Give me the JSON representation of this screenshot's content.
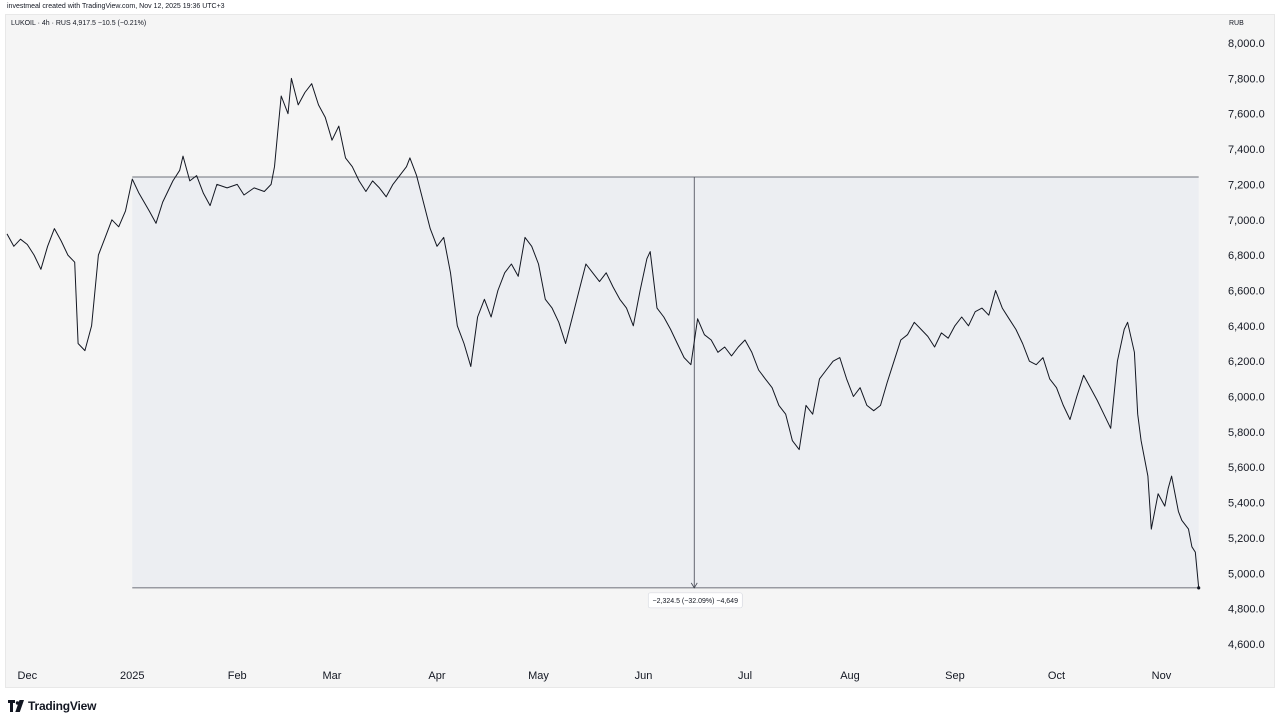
{
  "header": {
    "credit": "investmeal created with TradingView.com, Nov 12, 2025 19:36 UTC+3"
  },
  "symbol": {
    "legend": "LUKOIL · 4h · RUS  4,917.5  −10.5 (−0.21%)"
  },
  "currency": "RUB",
  "footer": {
    "brand": "TradingView"
  },
  "colors": {
    "background": "#f5f5f5",
    "line": "#131722",
    "range_fill": "#eceef2",
    "range_border": "#434651"
  },
  "chart_data": {
    "type": "line",
    "title": "",
    "xlabel": "",
    "ylabel": "",
    "ylim": [
      4500,
      8100
    ],
    "y_ticks": [
      4600,
      4800,
      5000,
      5200,
      5400,
      5600,
      5800,
      6000,
      6200,
      6400,
      6600,
      6800,
      7000,
      7200,
      7400,
      7600,
      7800,
      8000
    ],
    "y_tick_labels": [
      "4,600.0",
      "4,800.0",
      "5,000.0",
      "5,200.0",
      "5,400.0",
      "5,600.0",
      "5,800.0",
      "6,000.0",
      "6,200.0",
      "6,400.0",
      "6,600.0",
      "6,800.0",
      "7,000.0",
      "7,200.0",
      "7,400.0",
      "7,600.0",
      "7,800.0",
      "8,000.0"
    ],
    "x_range": [
      "2024-11-25",
      "2025-11-18"
    ],
    "x_ticks": [
      {
        "date": "2024-12-01",
        "label": "Dec"
      },
      {
        "date": "2025-01-01",
        "label": "2025"
      },
      {
        "date": "2025-02-01",
        "label": "Feb"
      },
      {
        "date": "2025-03-01",
        "label": "Mar"
      },
      {
        "date": "2025-04-01",
        "label": "Apr"
      },
      {
        "date": "2025-05-01",
        "label": "May"
      },
      {
        "date": "2025-06-01",
        "label": "Jun"
      },
      {
        "date": "2025-07-01",
        "label": "Jul"
      },
      {
        "date": "2025-08-01",
        "label": "Aug"
      },
      {
        "date": "2025-09-01",
        "label": "Sep"
      },
      {
        "date": "2025-10-01",
        "label": "Oct"
      },
      {
        "date": "2025-11-01",
        "label": "Nov"
      }
    ],
    "grid": false,
    "series": [
      {
        "points": [
          [
            "2024-11-25",
            6920
          ],
          [
            "2024-11-27",
            6850
          ],
          [
            "2024-11-29",
            6890
          ],
          [
            "2024-12-01",
            6860
          ],
          [
            "2024-12-03",
            6800
          ],
          [
            "2024-12-05",
            6720
          ],
          [
            "2024-12-07",
            6850
          ],
          [
            "2024-12-09",
            6950
          ],
          [
            "2024-12-11",
            6880
          ],
          [
            "2024-12-13",
            6800
          ],
          [
            "2024-12-15",
            6760
          ],
          [
            "2024-12-16",
            6300
          ],
          [
            "2024-12-18",
            6260
          ],
          [
            "2024-12-20",
            6400
          ],
          [
            "2024-12-22",
            6800
          ],
          [
            "2024-12-24",
            6900
          ],
          [
            "2024-12-26",
            7000
          ],
          [
            "2024-12-28",
            6960
          ],
          [
            "2024-12-30",
            7050
          ],
          [
            "2025-01-01",
            7230
          ],
          [
            "2025-01-03",
            7150
          ],
          [
            "2025-01-06",
            7050
          ],
          [
            "2025-01-08",
            6980
          ],
          [
            "2025-01-10",
            7100
          ],
          [
            "2025-01-13",
            7220
          ],
          [
            "2025-01-15",
            7280
          ],
          [
            "2025-01-16",
            7360
          ],
          [
            "2025-01-18",
            7220
          ],
          [
            "2025-01-20",
            7250
          ],
          [
            "2025-01-22",
            7150
          ],
          [
            "2025-01-24",
            7080
          ],
          [
            "2025-01-26",
            7200
          ],
          [
            "2025-01-29",
            7180
          ],
          [
            "2025-02-01",
            7200
          ],
          [
            "2025-02-03",
            7140
          ],
          [
            "2025-02-06",
            7180
          ],
          [
            "2025-02-09",
            7160
          ],
          [
            "2025-02-11",
            7200
          ],
          [
            "2025-02-12",
            7300
          ],
          [
            "2025-02-13",
            7500
          ],
          [
            "2025-02-14",
            7700
          ],
          [
            "2025-02-16",
            7600
          ],
          [
            "2025-02-17",
            7800
          ],
          [
            "2025-02-19",
            7650
          ],
          [
            "2025-02-21",
            7720
          ],
          [
            "2025-02-23",
            7770
          ],
          [
            "2025-02-25",
            7650
          ],
          [
            "2025-02-27",
            7580
          ],
          [
            "2025-03-01",
            7450
          ],
          [
            "2025-03-03",
            7530
          ],
          [
            "2025-03-05",
            7350
          ],
          [
            "2025-03-07",
            7300
          ],
          [
            "2025-03-09",
            7220
          ],
          [
            "2025-03-11",
            7160
          ],
          [
            "2025-03-13",
            7220
          ],
          [
            "2025-03-15",
            7180
          ],
          [
            "2025-03-17",
            7130
          ],
          [
            "2025-03-19",
            7200
          ],
          [
            "2025-03-21",
            7250
          ],
          [
            "2025-03-23",
            7300
          ],
          [
            "2025-03-24",
            7350
          ],
          [
            "2025-03-26",
            7250
          ],
          [
            "2025-03-28",
            7100
          ],
          [
            "2025-03-30",
            6950
          ],
          [
            "2025-04-01",
            6850
          ],
          [
            "2025-04-03",
            6900
          ],
          [
            "2025-04-05",
            6700
          ],
          [
            "2025-04-07",
            6400
          ],
          [
            "2025-04-09",
            6300
          ],
          [
            "2025-04-11",
            6170
          ],
          [
            "2025-04-13",
            6450
          ],
          [
            "2025-04-15",
            6550
          ],
          [
            "2025-04-17",
            6450
          ],
          [
            "2025-04-19",
            6600
          ],
          [
            "2025-04-21",
            6700
          ],
          [
            "2025-04-23",
            6750
          ],
          [
            "2025-04-25",
            6680
          ],
          [
            "2025-04-27",
            6900
          ],
          [
            "2025-04-29",
            6850
          ],
          [
            "2025-05-01",
            6750
          ],
          [
            "2025-05-03",
            6550
          ],
          [
            "2025-05-05",
            6500
          ],
          [
            "2025-05-07",
            6420
          ],
          [
            "2025-05-09",
            6300
          ],
          [
            "2025-05-11",
            6450
          ],
          [
            "2025-05-13",
            6600
          ],
          [
            "2025-05-15",
            6750
          ],
          [
            "2025-05-17",
            6700
          ],
          [
            "2025-05-19",
            6650
          ],
          [
            "2025-05-21",
            6700
          ],
          [
            "2025-05-23",
            6620
          ],
          [
            "2025-05-25",
            6550
          ],
          [
            "2025-05-27",
            6500
          ],
          [
            "2025-05-29",
            6400
          ],
          [
            "2025-05-31",
            6600
          ],
          [
            "2025-06-02",
            6780
          ],
          [
            "2025-06-03",
            6820
          ],
          [
            "2025-06-05",
            6500
          ],
          [
            "2025-06-07",
            6450
          ],
          [
            "2025-06-09",
            6380
          ],
          [
            "2025-06-11",
            6300
          ],
          [
            "2025-06-13",
            6220
          ],
          [
            "2025-06-15",
            6180
          ],
          [
            "2025-06-17",
            6440
          ],
          [
            "2025-06-19",
            6350
          ],
          [
            "2025-06-21",
            6320
          ],
          [
            "2025-06-23",
            6250
          ],
          [
            "2025-06-25",
            6280
          ],
          [
            "2025-06-27",
            6230
          ],
          [
            "2025-06-29",
            6280
          ],
          [
            "2025-07-01",
            6320
          ],
          [
            "2025-07-03",
            6250
          ],
          [
            "2025-07-05",
            6150
          ],
          [
            "2025-07-07",
            6100
          ],
          [
            "2025-07-09",
            6050
          ],
          [
            "2025-07-11",
            5950
          ],
          [
            "2025-07-13",
            5900
          ],
          [
            "2025-07-15",
            5750
          ],
          [
            "2025-07-17",
            5700
          ],
          [
            "2025-07-19",
            5950
          ],
          [
            "2025-07-21",
            5900
          ],
          [
            "2025-07-23",
            6100
          ],
          [
            "2025-07-25",
            6150
          ],
          [
            "2025-07-27",
            6200
          ],
          [
            "2025-07-29",
            6220
          ],
          [
            "2025-07-31",
            6100
          ],
          [
            "2025-08-02",
            6000
          ],
          [
            "2025-08-04",
            6050
          ],
          [
            "2025-08-06",
            5950
          ],
          [
            "2025-08-08",
            5920
          ],
          [
            "2025-08-10",
            5950
          ],
          [
            "2025-08-12",
            6080
          ],
          [
            "2025-08-14",
            6200
          ],
          [
            "2025-08-16",
            6320
          ],
          [
            "2025-08-18",
            6350
          ],
          [
            "2025-08-20",
            6420
          ],
          [
            "2025-08-22",
            6380
          ],
          [
            "2025-08-24",
            6340
          ],
          [
            "2025-08-26",
            6280
          ],
          [
            "2025-08-28",
            6360
          ],
          [
            "2025-08-30",
            6330
          ],
          [
            "2025-09-01",
            6400
          ],
          [
            "2025-09-03",
            6450
          ],
          [
            "2025-09-05",
            6400
          ],
          [
            "2025-09-07",
            6480
          ],
          [
            "2025-09-09",
            6500
          ],
          [
            "2025-09-11",
            6460
          ],
          [
            "2025-09-13",
            6600
          ],
          [
            "2025-09-15",
            6500
          ],
          [
            "2025-09-17",
            6440
          ],
          [
            "2025-09-19",
            6380
          ],
          [
            "2025-09-21",
            6300
          ],
          [
            "2025-09-23",
            6200
          ],
          [
            "2025-09-25",
            6180
          ],
          [
            "2025-09-27",
            6220
          ],
          [
            "2025-09-29",
            6100
          ],
          [
            "2025-10-01",
            6050
          ],
          [
            "2025-10-03",
            5950
          ],
          [
            "2025-10-05",
            5870
          ],
          [
            "2025-10-07",
            6000
          ],
          [
            "2025-10-09",
            6120
          ],
          [
            "2025-10-11",
            6050
          ],
          [
            "2025-10-13",
            5980
          ],
          [
            "2025-10-15",
            5900
          ],
          [
            "2025-10-17",
            5820
          ],
          [
            "2025-10-19",
            6200
          ],
          [
            "2025-10-21",
            6380
          ],
          [
            "2025-10-22",
            6420
          ],
          [
            "2025-10-24",
            6250
          ],
          [
            "2025-10-25",
            5900
          ],
          [
            "2025-10-26",
            5750
          ],
          [
            "2025-10-27",
            5650
          ],
          [
            "2025-10-28",
            5550
          ],
          [
            "2025-10-29",
            5250
          ],
          [
            "2025-10-31",
            5450
          ],
          [
            "2025-11-02",
            5380
          ],
          [
            "2025-11-03",
            5480
          ],
          [
            "2025-11-04",
            5550
          ],
          [
            "2025-11-06",
            5350
          ],
          [
            "2025-11-07",
            5300
          ],
          [
            "2025-11-09",
            5250
          ],
          [
            "2025-11-10",
            5150
          ],
          [
            "2025-11-11",
            5120
          ],
          [
            "2025-11-12",
            4917.5
          ]
        ]
      }
    ],
    "annotations": {
      "price_range": {
        "start_date": "2025-01-01",
        "end_date": "2025-11-12",
        "top_value": 7242,
        "bottom_value": 4917.5,
        "arrow_date": "2025-06-16",
        "label": "−2,324.5 (−32.09%) −4,649"
      }
    }
  }
}
